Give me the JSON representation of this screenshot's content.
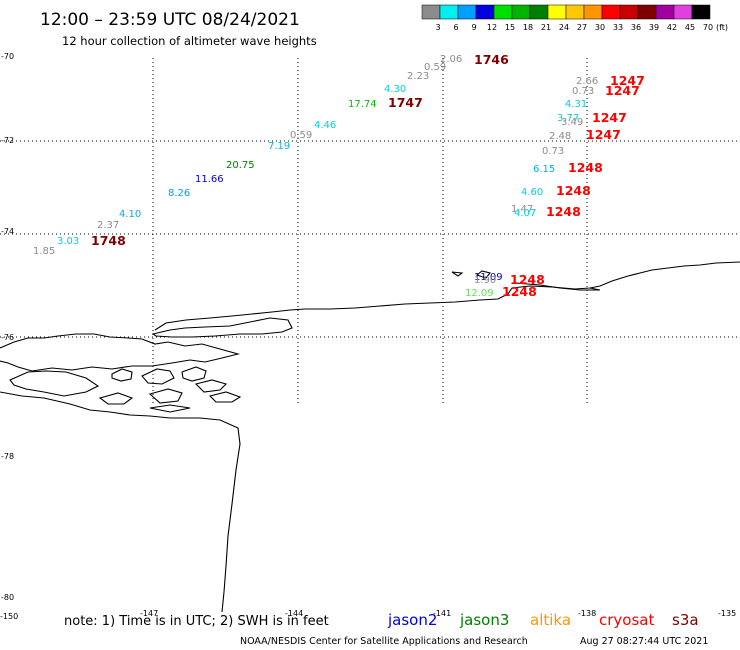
{
  "header": {
    "title": "12:00 – 23:59 UTC 08/24/2021",
    "subtitle": "12 hour collection of altimeter wave heights"
  },
  "color_scale": {
    "unit_label": "(ft)",
    "values": [
      "3",
      "6",
      "9",
      "12",
      "15",
      "18",
      "21",
      "24",
      "27",
      "30",
      "33",
      "36",
      "39",
      "42",
      "45",
      "70"
    ],
    "colors": [
      "#8c8c8c",
      "#00f0f0",
      "#00a0ff",
      "#0000e0",
      "#00e000",
      "#00b400",
      "#008000",
      "#ffff00",
      "#ffc800",
      "#ff9600",
      "#ff0000",
      "#c80000",
      "#800000",
      "#a000a0",
      "#e040e0",
      "#000000"
    ]
  },
  "map": {
    "lat_labels": [
      {
        "text": "-70",
        "id": "lat-70"
      },
      {
        "text": "-72",
        "id": "lat-72"
      },
      {
        "text": "-74",
        "id": "lat-74"
      },
      {
        "text": "-76",
        "id": "lat-76"
      },
      {
        "text": "-78",
        "id": "lat-78"
      },
      {
        "text": "-80",
        "id": "lat-80"
      }
    ],
    "lon_labels": [
      {
        "text": "-150",
        "id": "lon-150"
      },
      {
        "text": "-147",
        "id": "lon-147"
      },
      {
        "text": "-144",
        "id": "lon-144"
      },
      {
        "text": "-141",
        "id": "lon-141"
      },
      {
        "text": "-138",
        "id": "lon-138"
      },
      {
        "text": "-135",
        "id": "lon-135"
      }
    ],
    "wave_heights": [
      {
        "text": "1.85",
        "color": "#8c8c8c"
      },
      {
        "text": "3.03",
        "color": "#00d0e0"
      },
      {
        "text": "2.37",
        "color": "#8c8c8c"
      },
      {
        "text": "4.10",
        "color": "#00b0e8"
      },
      {
        "text": "8.26",
        "color": "#00a0e0"
      },
      {
        "text": "11.66",
        "color": "#0000d0"
      },
      {
        "text": "20.75",
        "color": "#008000"
      },
      {
        "text": "7.19",
        "color": "#00b0e8"
      },
      {
        "text": "0.59",
        "color": "#8c8c8c"
      },
      {
        "text": "4.46",
        "color": "#00d0e0"
      },
      {
        "text": "17.74",
        "color": "#00c000"
      },
      {
        "text": "4.30",
        "color": "#00d0e0"
      },
      {
        "text": "2.23",
        "color": "#8c8c8c"
      },
      {
        "text": "0.59",
        "color": "#8c8c8c"
      },
      {
        "text": "2.06",
        "color": "#8c8c8c"
      },
      {
        "text": "2.66",
        "color": "#8c8c8c"
      },
      {
        "text": "0.73",
        "color": "#8c8c8c"
      },
      {
        "text": "4.31",
        "color": "#00d0e0"
      },
      {
        "text": "3.77",
        "color": "#00d0e0"
      },
      {
        "text": "3.49",
        "color": "#8c8c8c"
      },
      {
        "text": "2.48",
        "color": "#8c8c8c"
      },
      {
        "text": "0.73",
        "color": "#8c8c8c"
      },
      {
        "text": "6.15",
        "color": "#00b0e8"
      },
      {
        "text": "4.60",
        "color": "#00d0e0"
      },
      {
        "text": "1.47",
        "color": "#8c8c8c"
      },
      {
        "text": "4.07",
        "color": "#00d0e0"
      },
      {
        "text": "11.09",
        "color": "#0000d0"
      },
      {
        "text": "1.90",
        "color": "#8c8c8c"
      },
      {
        "text": "12.09",
        "color": "#60e060"
      }
    ],
    "time_labels": [
      {
        "text": "1748",
        "color": "#800000"
      },
      {
        "text": "1747",
        "color": "#800000"
      },
      {
        "text": "1746",
        "color": "#800000"
      },
      {
        "text": "1247",
        "color": "#ff0000"
      },
      {
        "text": "1247",
        "color": "#ff0000"
      },
      {
        "text": "1247",
        "color": "#ff0000"
      },
      {
        "text": "1247",
        "color": "#ff0000"
      },
      {
        "text": "1248",
        "color": "#ff0000"
      },
      {
        "text": "1248",
        "color": "#ff0000"
      },
      {
        "text": "1248",
        "color": "#ff0000"
      },
      {
        "text": "1248",
        "color": "#ff0000"
      },
      {
        "text": "1248",
        "color": "#ff0000"
      }
    ]
  },
  "footer": {
    "note": "note:  1) Time is in UTC;  2) SWH is in feet",
    "satellites": [
      {
        "name": "jason2",
        "color": "#0000e0"
      },
      {
        "name": "jason3",
        "color": "#008000"
      },
      {
        "name": "altika",
        "color": "#ff9600"
      },
      {
        "name": "cryosat",
        "color": "#ff0000"
      },
      {
        "name": "s3a",
        "color": "#800000"
      }
    ],
    "credit": "NOAA/NESDIS Center for Satellite Applications and Research",
    "timestamp": "Aug 27 08:27:44 UTC 2021"
  }
}
